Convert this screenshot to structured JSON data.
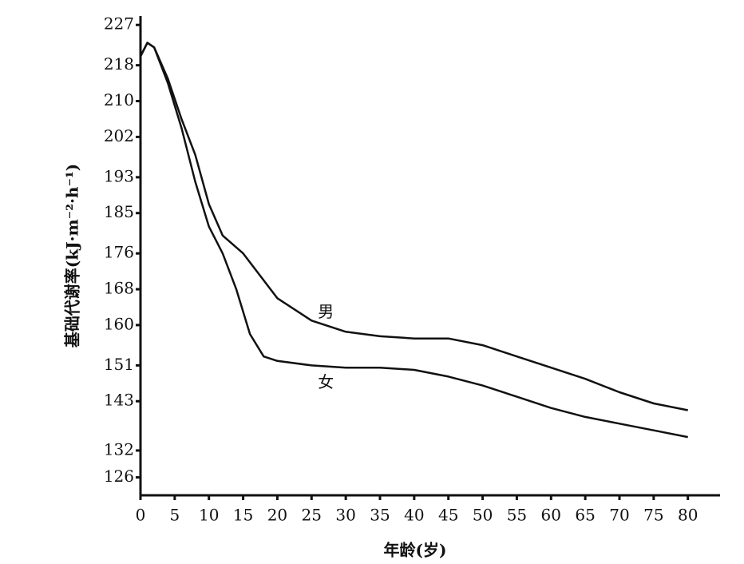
{
  "chart_data": {
    "type": "line",
    "y_label": "基础代谢率(kJ·m⁻²·h⁻¹)",
    "x_label": "年龄(岁)",
    "series": [
      {
        "name": "男",
        "color": "#111111",
        "x": [
          0,
          1,
          2,
          4,
          6,
          8,
          10,
          12,
          15,
          17,
          20,
          25,
          30,
          35,
          40,
          45,
          50,
          55,
          60,
          65,
          70,
          75,
          80
        ],
        "values": [
          220,
          223,
          222,
          215,
          206,
          198,
          187,
          180,
          176,
          172,
          166,
          161,
          158.5,
          157.5,
          157,
          157,
          155.5,
          153,
          150.5,
          148,
          145,
          142.5,
          141
        ]
      },
      {
        "name": "女",
        "color": "#111111",
        "x": [
          0,
          1,
          2,
          4,
          6,
          8,
          10,
          12,
          14,
          16,
          18,
          20,
          25,
          30,
          35,
          40,
          45,
          50,
          55,
          60,
          65,
          70,
          75,
          80
        ],
        "values": [
          220,
          223,
          222,
          214,
          204,
          192,
          182,
          176,
          168,
          158,
          153,
          152,
          151,
          150.5,
          150.5,
          150,
          148.5,
          146.5,
          144,
          141.5,
          139.5,
          138,
          136.5,
          135
        ]
      }
    ],
    "xlim": [
      0,
      84
    ],
    "xticks": [
      0,
      5,
      10,
      15,
      20,
      25,
      30,
      35,
      40,
      45,
      50,
      55,
      60,
      65,
      70,
      75,
      80
    ],
    "ylim": [
      122,
      229
    ],
    "yticks": [
      227,
      218,
      210,
      202,
      193,
      185,
      176,
      168,
      160,
      151,
      143,
      132,
      126
    ],
    "grid": false
  }
}
